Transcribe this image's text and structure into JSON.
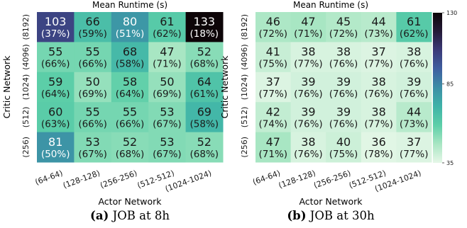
{
  "chart_data": [
    {
      "type": "heatmap",
      "title": "Mean Runtime (s)",
      "xlabel": "Actor Network",
      "ylabel": "Critic Network",
      "x_categories": [
        "(64-64)",
        "(128-128)",
        "(256-256)",
        "(512-512)",
        "(1024-1024)"
      ],
      "y_categories": [
        "(8192)",
        "(4096)",
        "(1024)",
        "(512)",
        "(256)"
      ],
      "values": [
        [
          103,
          66,
          80,
          61,
          133
        ],
        [
          55,
          55,
          68,
          47,
          52
        ],
        [
          59,
          50,
          58,
          50,
          64
        ],
        [
          60,
          55,
          55,
          53,
          69
        ],
        [
          81,
          53,
          52,
          53,
          52
        ]
      ],
      "percent_labels": [
        [
          "(37%)",
          "(59%)",
          "(51%)",
          "(62%)",
          "(18%)"
        ],
        [
          "(66%)",
          "(66%)",
          "(58%)",
          "(71%)",
          "(68%)"
        ],
        [
          "(64%)",
          "(69%)",
          "(64%)",
          "(69%)",
          "(61%)"
        ],
        [
          "(63%)",
          "(66%)",
          "(66%)",
          "(67%)",
          "(58%)"
        ],
        [
          "(50%)",
          "(67%)",
          "(68%)",
          "(67%)",
          "(68%)"
        ]
      ],
      "color_range": [
        35,
        130
      ],
      "caption_label": "(a)",
      "caption_text": "JOB at 8h"
    },
    {
      "type": "heatmap",
      "title": "Mean Runtime (s)",
      "xlabel": "Actor Network",
      "ylabel": "Critic Network",
      "x_categories": [
        "(64-64)",
        "(128-128)",
        "(256-256)",
        "(512-512)",
        "(1024-1024)"
      ],
      "y_categories": [
        "(8192)",
        "(4096)",
        "(1024)",
        "(512)",
        "(256)"
      ],
      "values": [
        [
          46,
          47,
          45,
          44,
          61
        ],
        [
          41,
          38,
          38,
          37,
          38
        ],
        [
          37,
          39,
          39,
          38,
          39
        ],
        [
          42,
          39,
          39,
          38,
          44
        ],
        [
          47,
          38,
          40,
          36,
          37
        ]
      ],
      "percent_labels": [
        [
          "(72%)",
          "(71%)",
          "(72%)",
          "(73%)",
          "(62%)"
        ],
        [
          "(75%)",
          "(77%)",
          "(76%)",
          "(77%)",
          "(76%)"
        ],
        [
          "(77%)",
          "(76%)",
          "(76%)",
          "(76%)",
          "(76%)"
        ],
        [
          "(74%)",
          "(76%)",
          "(76%)",
          "(77%)",
          "(73%)"
        ],
        [
          "(71%)",
          "(76%)",
          "(75%)",
          "(78%)",
          "(77%)"
        ]
      ],
      "color_range": [
        35,
        130
      ],
      "caption_label": "(b)",
      "caption_text": "JOB at 30h"
    }
  ],
  "colorbar": {
    "min": 35,
    "max": 130,
    "ticks": [
      "130",
      "85",
      "35"
    ],
    "tick_values": [
      130,
      85,
      35
    ]
  },
  "colors": {
    "colormap_stops": [
      "#e6f7e8",
      "#a9e6c3",
      "#5dcfa8",
      "#3fb3a8",
      "#3d8fa6",
      "#3f5fa0",
      "#3b3a78",
      "#241a38",
      "#0d0508"
    ]
  }
}
